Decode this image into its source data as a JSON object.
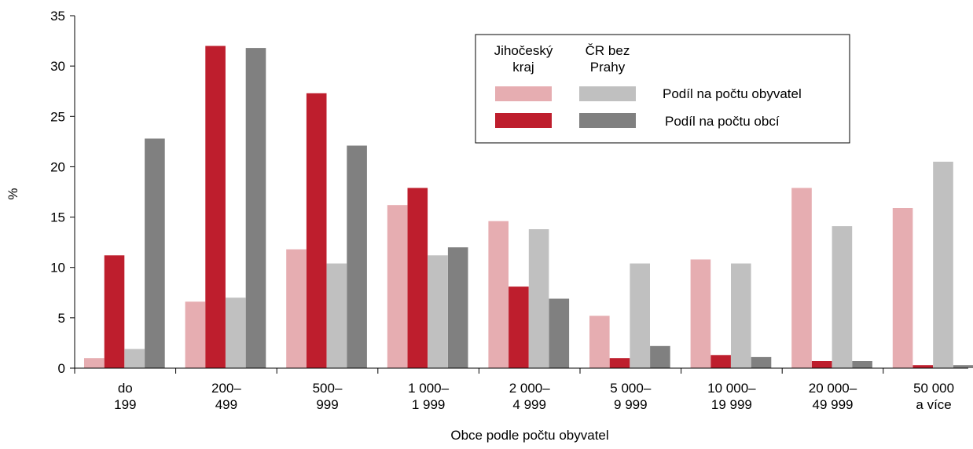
{
  "chart_data": {
    "type": "bar",
    "title": "",
    "xlabel": "Obce podle počtu obyvatel",
    "ylabel": "%",
    "ylim": [
      0,
      35
    ],
    "yticks": [
      0,
      5,
      10,
      15,
      20,
      25,
      30,
      35
    ],
    "grid": false,
    "legend_position": "top-right",
    "categories": [
      [
        "do",
        "199"
      ],
      [
        "200–",
        "499"
      ],
      [
        "500–",
        "999"
      ],
      [
        "1 000–",
        "1 999"
      ],
      [
        "2 000–",
        "4 999"
      ],
      [
        "5 000–",
        "9 999"
      ],
      [
        "10 000–",
        "19 999"
      ],
      [
        "20 000–",
        "49 999"
      ],
      [
        "50 000",
        "a více"
      ]
    ],
    "series": [
      {
        "key": "jc_pop",
        "region": "Jihočeský kraj",
        "measure": "Podíl na počtu obyvatel",
        "color": "#e6adb1",
        "values": [
          1.0,
          6.6,
          11.8,
          16.2,
          14.6,
          5.2,
          10.8,
          17.9,
          15.9
        ]
      },
      {
        "key": "jc_mun",
        "region": "Jihočeský kraj",
        "measure": "Podíl na počtu obcí",
        "color": "#be1e2d",
        "values": [
          11.2,
          32.0,
          27.3,
          17.9,
          8.1,
          1.0,
          1.3,
          0.7,
          0.3
        ]
      },
      {
        "key": "cr_pop",
        "region": "ČR bez Prahy",
        "measure": "Podíl na počtu obyvatel",
        "color": "#c0c0c0",
        "values": [
          1.9,
          7.0,
          10.4,
          11.2,
          13.8,
          10.4,
          10.4,
          14.1,
          20.5
        ]
      },
      {
        "key": "cr_mun",
        "region": "ČR bez Prahy",
        "measure": "Podíl na počtu obcí",
        "color": "#808080",
        "values": [
          22.8,
          31.8,
          22.1,
          12.0,
          6.9,
          2.2,
          1.1,
          0.7,
          0.3
        ]
      }
    ],
    "legend": {
      "col1_line1": "Jihočeský",
      "col1_line2": "kraj",
      "col2_line1": "ČR bez",
      "col2_line2": "Prahy",
      "row1_label": "Podíl na počtu obyvatel",
      "row2_label": "Podíl na počtu obcí"
    }
  }
}
